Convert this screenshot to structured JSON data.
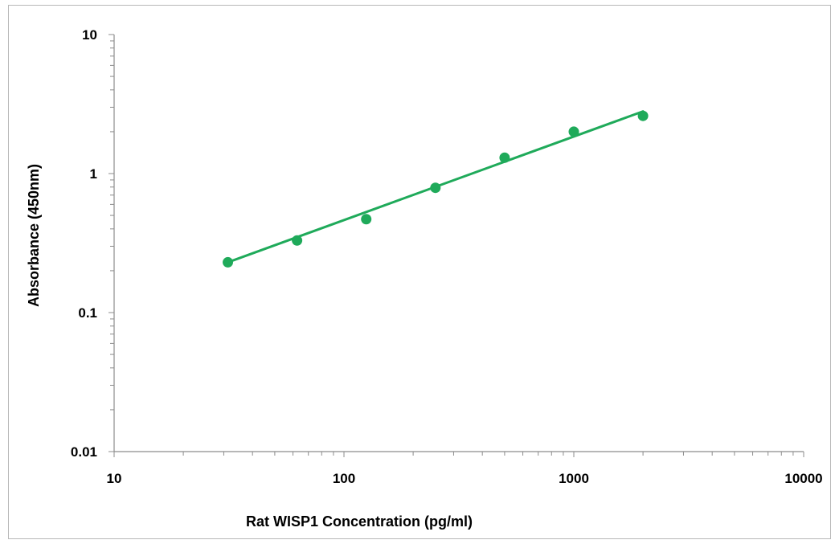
{
  "chart_data": {
    "type": "scatter",
    "title": "",
    "xlabel": "Rat WISP1 Concentration (pg/ml)",
    "ylabel": "Absorbance (450nm)",
    "x_scale": "log",
    "y_scale": "log",
    "xlim": [
      10,
      10000
    ],
    "ylim": [
      0.01,
      10
    ],
    "x_ticks": [
      "10",
      "100",
      "1000",
      "10000"
    ],
    "y_ticks": [
      "0.01",
      "0.1",
      "1",
      "10"
    ],
    "grid": false,
    "legend": "none",
    "series": [
      {
        "x": [
          31.25,
          62.5,
          125,
          250,
          500,
          1000,
          2000
        ],
        "y": [
          0.23,
          0.33,
          0.47,
          0.79,
          1.3,
          2.0,
          2.6
        ],
        "color": "#1faa5a",
        "trendline": {
          "type": "power",
          "x_range": [
            31.25,
            2000
          ],
          "y_range": [
            0.23,
            2.8
          ]
        }
      }
    ]
  }
}
